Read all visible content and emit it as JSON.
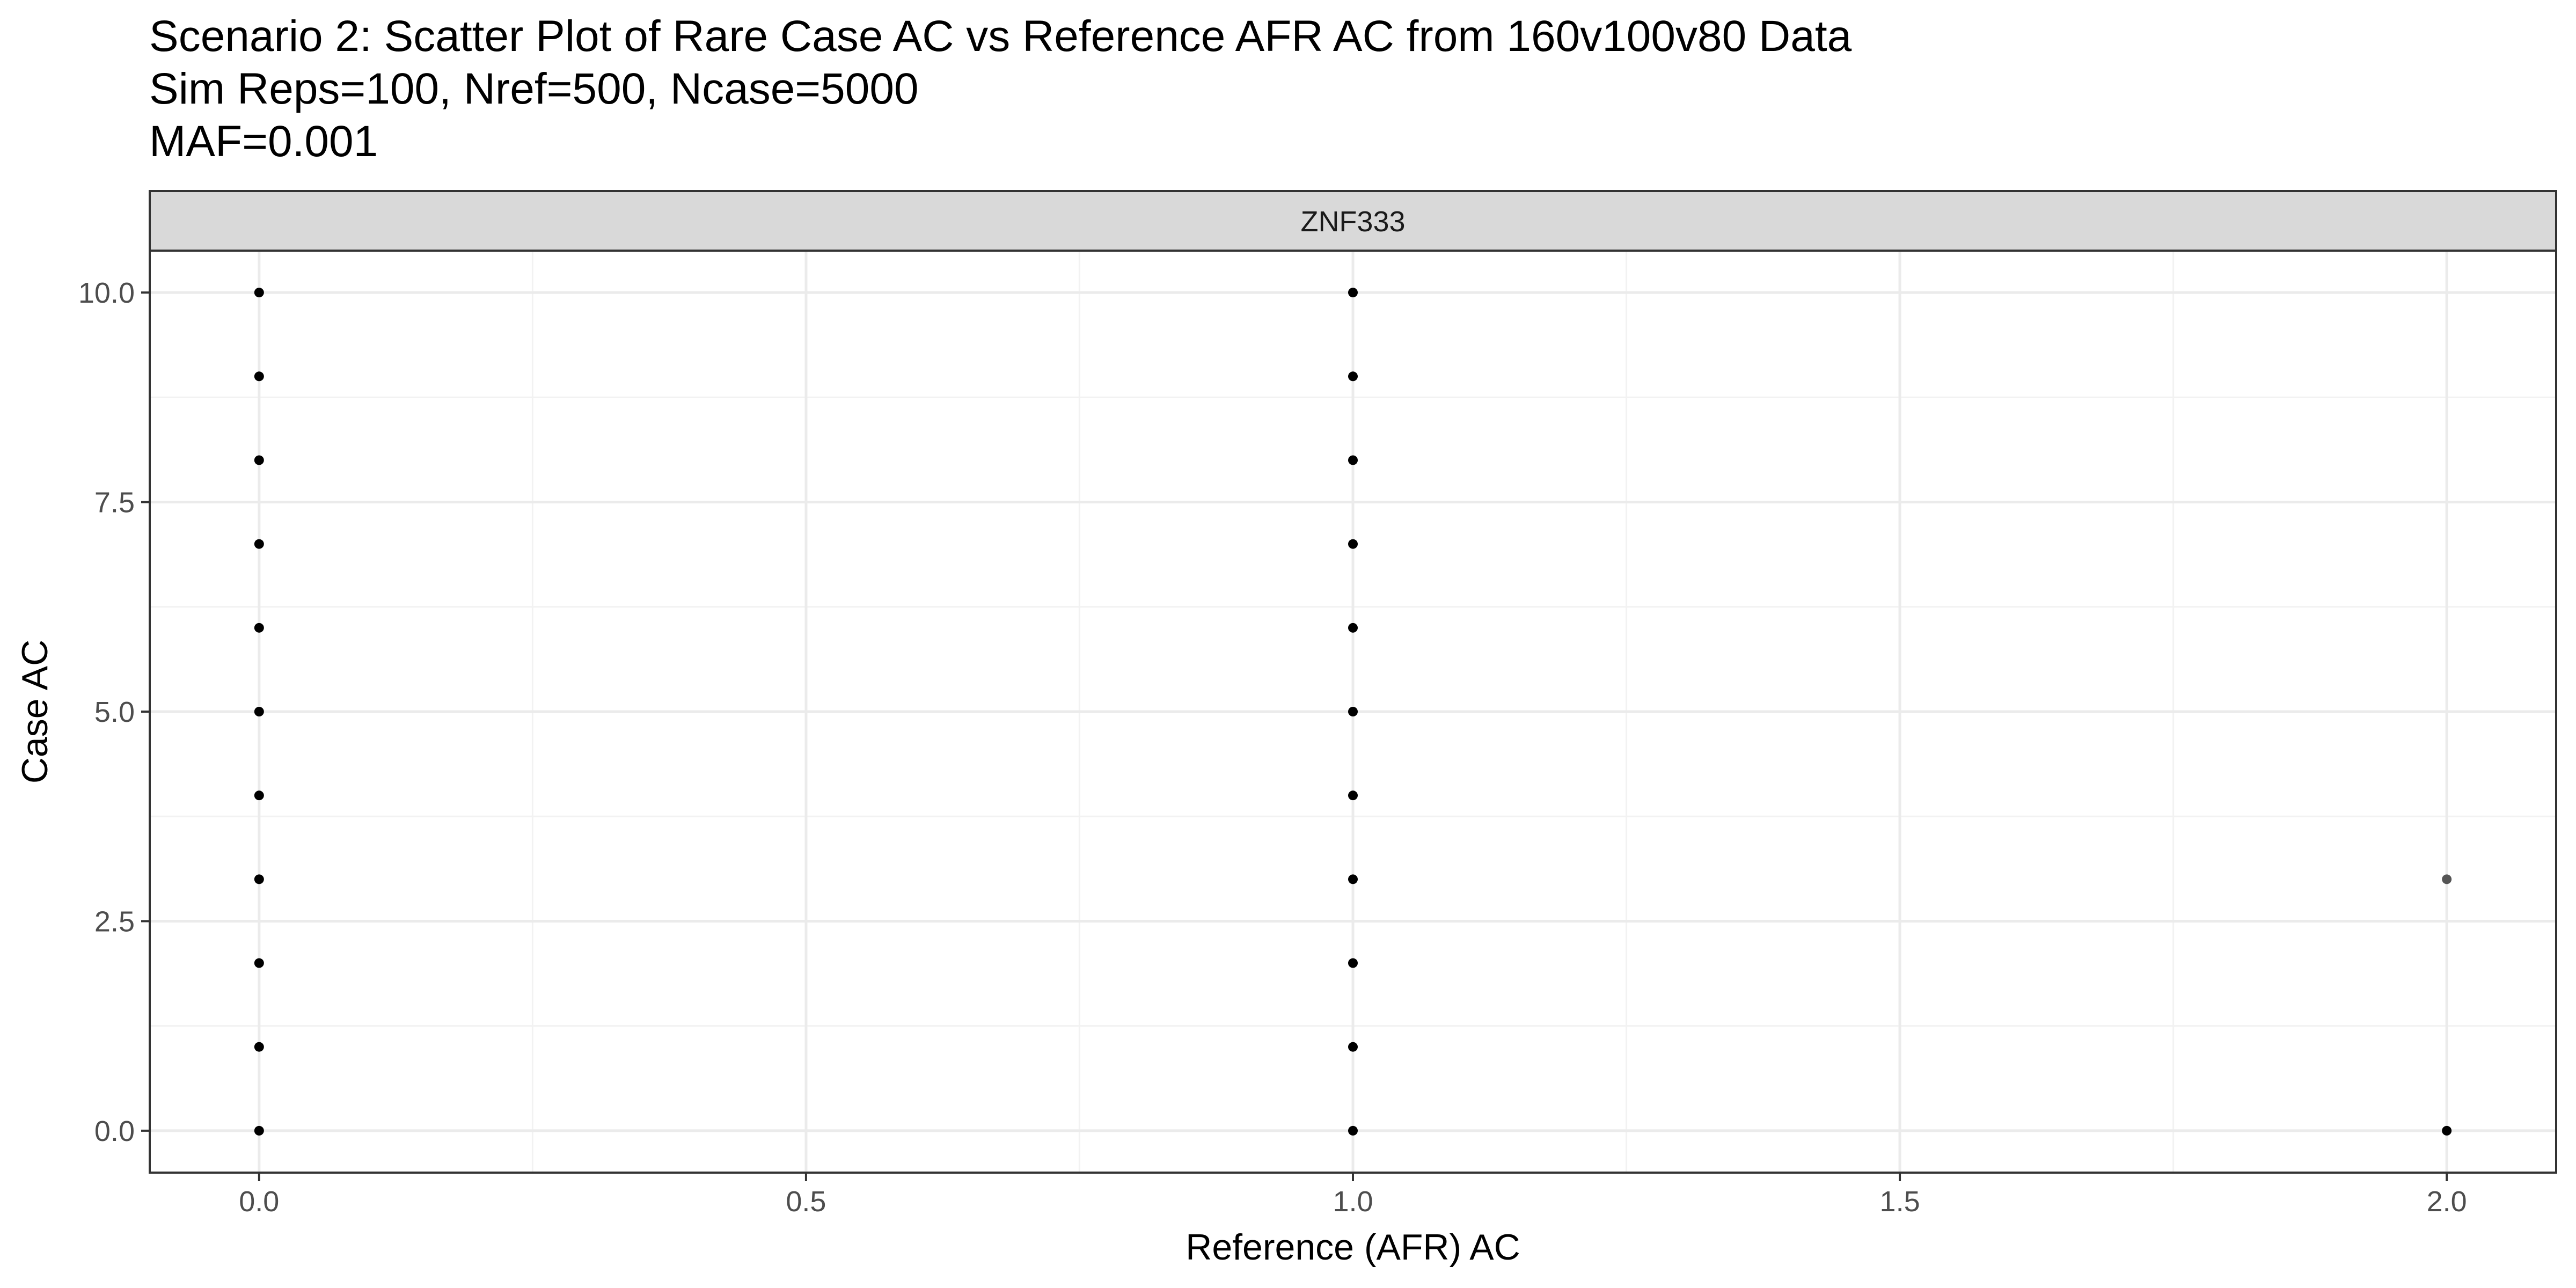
{
  "chart_data": {
    "type": "scatter",
    "title_lines": [
      "Scenario 2: Scatter Plot of Rare Case AC vs Reference AFR AC from 160v100v80 Data",
      "Sim Reps=100, Nref=500, Ncase=5000",
      "MAF=0.001"
    ],
    "facet_label": "ZNF333",
    "xlabel": "Reference (AFR) AC",
    "ylabel": "Case AC",
    "xlim": [
      -0.1,
      2.1
    ],
    "ylim": [
      -0.5,
      10.5
    ],
    "x_ticks": [
      0.0,
      0.5,
      1.0,
      1.5,
      2.0
    ],
    "x_tick_labels": [
      "0.0",
      "0.5",
      "1.0",
      "1.5",
      "2.0"
    ],
    "y_ticks": [
      0.0,
      2.5,
      5.0,
      7.5,
      10.0
    ],
    "y_tick_labels": [
      "0.0",
      "2.5",
      "5.0",
      "7.5",
      "10.0"
    ],
    "x_minor": [
      0.25,
      0.75,
      1.25,
      1.75
    ],
    "y_minor": [
      1.25,
      3.75,
      6.25,
      8.75
    ],
    "grid": true,
    "point_color": "#000000",
    "faint_point_color": "#555555",
    "points": [
      {
        "x": 0,
        "y": 0
      },
      {
        "x": 0,
        "y": 1
      },
      {
        "x": 0,
        "y": 2
      },
      {
        "x": 0,
        "y": 3
      },
      {
        "x": 0,
        "y": 4
      },
      {
        "x": 0,
        "y": 5
      },
      {
        "x": 0,
        "y": 6
      },
      {
        "x": 0,
        "y": 7
      },
      {
        "x": 0,
        "y": 8
      },
      {
        "x": 0,
        "y": 9
      },
      {
        "x": 0,
        "y": 10
      },
      {
        "x": 1,
        "y": 0
      },
      {
        "x": 1,
        "y": 1
      },
      {
        "x": 1,
        "y": 2
      },
      {
        "x": 1,
        "y": 3
      },
      {
        "x": 1,
        "y": 4
      },
      {
        "x": 1,
        "y": 5
      },
      {
        "x": 1,
        "y": 6
      },
      {
        "x": 1,
        "y": 7
      },
      {
        "x": 1,
        "y": 8
      },
      {
        "x": 1,
        "y": 9
      },
      {
        "x": 1,
        "y": 10
      },
      {
        "x": 2,
        "y": 0
      },
      {
        "x": 2,
        "y": 3,
        "faint": true
      }
    ]
  }
}
